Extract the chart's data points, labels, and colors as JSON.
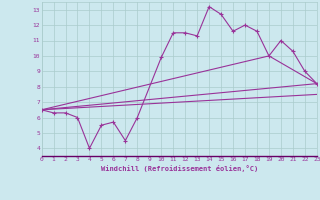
{
  "xlabel": "Windchill (Refroidissement éolien,°C)",
  "bg_color": "#cce8ee",
  "line_color": "#993399",
  "grid_color": "#aacccc",
  "xmin": 0,
  "xmax": 23,
  "ymin": 3.5,
  "ymax": 13.5,
  "yticks": [
    4,
    5,
    6,
    7,
    8,
    9,
    10,
    11,
    12,
    13
  ],
  "xticks": [
    0,
    1,
    2,
    3,
    4,
    5,
    6,
    7,
    8,
    9,
    10,
    11,
    12,
    13,
    14,
    15,
    16,
    17,
    18,
    19,
    20,
    21,
    22,
    23
  ],
  "series1_x": [
    0,
    1,
    2,
    3,
    4,
    5,
    6,
    7,
    8,
    10,
    11,
    12,
    13,
    14,
    15,
    16,
    17,
    18,
    19,
    20,
    21,
    22,
    23
  ],
  "series1_y": [
    6.5,
    6.3,
    6.3,
    6.0,
    4.0,
    5.5,
    5.7,
    4.5,
    6.0,
    9.9,
    11.5,
    11.5,
    11.3,
    13.2,
    12.7,
    11.6,
    12.0,
    11.6,
    10.0,
    11.0,
    10.3,
    9.0,
    8.2
  ],
  "series2_x": [
    0,
    23
  ],
  "series2_y": [
    6.5,
    8.2
  ],
  "series3_x": [
    0,
    19,
    23
  ],
  "series3_y": [
    6.5,
    10.0,
    8.2
  ],
  "series4_x": [
    0,
    23
  ],
  "series4_y": [
    6.5,
    7.5
  ]
}
